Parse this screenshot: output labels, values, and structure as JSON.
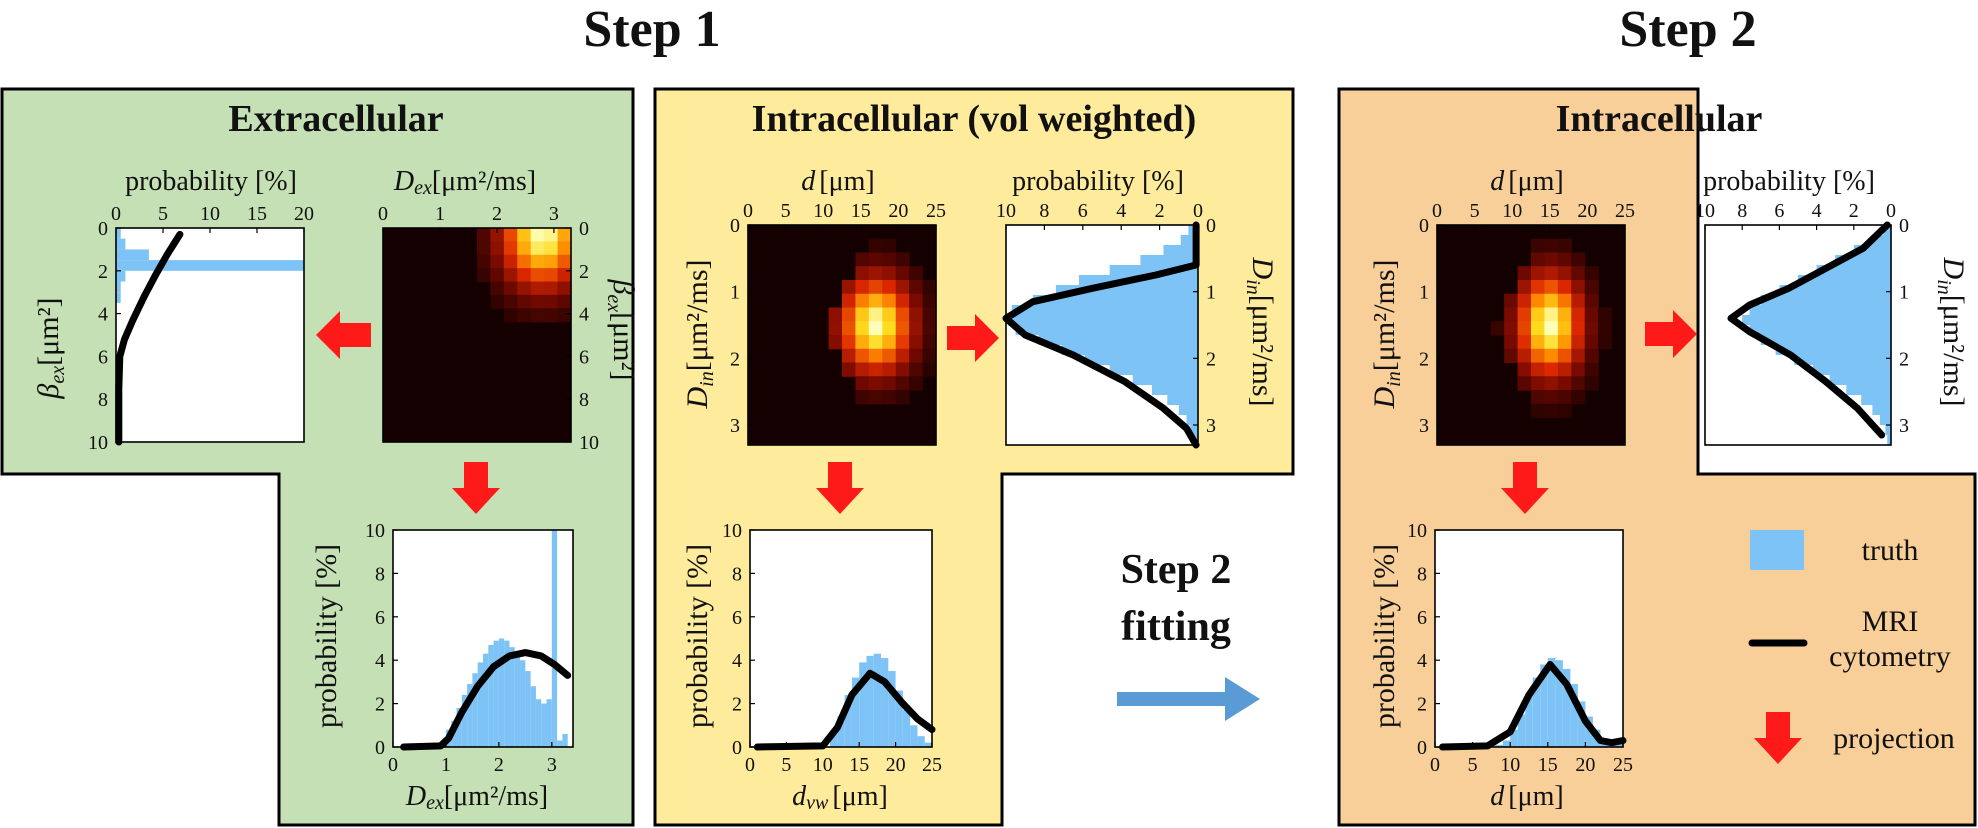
{
  "headings": {
    "step1": "Step 1",
    "step2": "Step 2",
    "fitting_line1": "Step 2",
    "fitting_line2": "fitting"
  },
  "panels": {
    "extracellular": "Extracellular",
    "intra_vol": "Intracellular (vol weighted)",
    "intra": "Intracellular"
  },
  "labels": {
    "probability_pct": "probability [%]",
    "dex_sym": "D",
    "dex_sub": "ex",
    "dex_unit": "[μm²/ms]",
    "bex_sym": "β",
    "bex_sub": "ex",
    "bex_unit": "[μm²]",
    "d_sym": "d",
    "d_unit": "[μm]",
    "din_sym": "D",
    "din_sub": "in",
    "din_unit": "[μm²/ms]",
    "dvw_sym": "d",
    "dvw_sub": "vw",
    "dvw_unit": "[μm]"
  },
  "legend": {
    "truth": "truth",
    "mri_line1": "MRI",
    "mri_line2": "cytometry",
    "projection": "projection"
  },
  "colors": {
    "truth": "#7ec3f5",
    "curve": "#000000",
    "arrow_red": "#ff1a1a",
    "arrow_blue": "#5b9bd5",
    "panel_green": "#c5e0b4",
    "panel_yellow": "#ffeb9c",
    "panel_orange": "#f8cf99"
  },
  "chart_data": [
    {
      "id": "ex-beta",
      "type": "bar",
      "orientation": "horizontal",
      "title": "",
      "xlabel": "probability [%]",
      "ylabel": "βex [μm²]",
      "xlim": [
        0,
        20
      ],
      "ylim": [
        0,
        10
      ],
      "xticks": [
        0,
        5,
        10,
        15,
        20
      ],
      "yticks": [
        0,
        2,
        4,
        6,
        8,
        10
      ],
      "truth": {
        "edges": [
          0,
          0.5,
          1,
          1.5,
          2,
          2.5,
          3,
          3.5
        ],
        "values": [
          0.5,
          1,
          3.5,
          20,
          1,
          0.5,
          0.5
        ]
      },
      "curve": [
        [
          6.8,
          0.3
        ],
        [
          5.5,
          1.2
        ],
        [
          4.2,
          2.2
        ],
        [
          3.0,
          3.2
        ],
        [
          1.8,
          4.3
        ],
        [
          0.9,
          5.2
        ],
        [
          0.4,
          6.0
        ],
        [
          0.3,
          7.5
        ],
        [
          0.3,
          10
        ]
      ]
    },
    {
      "id": "ex-heatmap",
      "type": "heatmap",
      "xlabel": "Dex [μm²/ms]",
      "ylabel": "βex [μm²]",
      "xlim": [
        0,
        3.3
      ],
      "ylim": [
        0,
        10
      ],
      "xticks": [
        0,
        1,
        2,
        3
      ],
      "yticks": [
        0,
        2,
        4,
        6,
        8,
        10
      ],
      "blob": {
        "peak_x": 2.8,
        "peak_y": 0.3,
        "spread_x": 0.75,
        "spread_y": 2.6,
        "x_cutoff": 1.0
      }
    },
    {
      "id": "ex-dex",
      "type": "bar",
      "xlabel": "Dex [μm²/ms]",
      "ylabel": "probability [%]",
      "xlim": [
        0,
        3.4
      ],
      "ylim": [
        0,
        10
      ],
      "xticks": [
        0,
        1,
        2,
        3
      ],
      "yticks": [
        0,
        2,
        4,
        6,
        8,
        10
      ],
      "truth": {
        "edges": [
          0.9,
          1.0,
          1.1,
          1.2,
          1.3,
          1.4,
          1.5,
          1.6,
          1.7,
          1.8,
          1.9,
          2.0,
          2.1,
          2.2,
          2.3,
          2.4,
          2.5,
          2.6,
          2.7,
          2.8,
          2.9,
          3.0,
          3.1,
          3.2,
          3.3
        ],
        "values": [
          0.3,
          0.8,
          1.2,
          1.8,
          2.4,
          2.9,
          3.4,
          3.9,
          4.3,
          4.7,
          4.9,
          5.0,
          4.9,
          4.6,
          4.4,
          4.0,
          3.5,
          2.8,
          2.2,
          2.0,
          2.2,
          10.0,
          0.3,
          0.6
        ]
      },
      "curve": [
        [
          0.2,
          0
        ],
        [
          0.9,
          0.05
        ],
        [
          1.05,
          0.4
        ],
        [
          1.3,
          1.6
        ],
        [
          1.6,
          2.8
        ],
        [
          1.9,
          3.7
        ],
        [
          2.2,
          4.2
        ],
        [
          2.5,
          4.35
        ],
        [
          2.8,
          4.2
        ],
        [
          3.05,
          3.8
        ],
        [
          3.3,
          3.3
        ]
      ]
    },
    {
      "id": "vw-heatmap",
      "type": "heatmap",
      "xlabel": "d [μm]",
      "ylabel": "Din [μm²/ms]",
      "xlim": [
        0,
        25
      ],
      "ylim": [
        0,
        3.3
      ],
      "xticks": [
        0,
        5,
        10,
        15,
        20,
        25
      ],
      "yticks": [
        0,
        1,
        2,
        3
      ],
      "blob": {
        "peak_x": 17,
        "peak_y": 1.5,
        "spread_x": 5,
        "spread_y": 0.75,
        "x_cutoff": 10.5,
        "wedge": true
      }
    },
    {
      "id": "vw-din",
      "type": "bar",
      "orientation": "horizontal",
      "x_reversed": true,
      "xlabel": "probability [%]",
      "ylabel": "Din [μm²/ms]",
      "xlim": [
        10,
        0
      ],
      "ylim": [
        0,
        3.3
      ],
      "xticks": [
        10,
        8,
        6,
        4,
        2,
        0
      ],
      "yticks": [
        0,
        1,
        2,
        3
      ],
      "truth": {
        "edges": [
          0,
          0.15,
          0.3,
          0.45,
          0.6,
          0.75,
          0.9,
          1.05,
          1.2,
          1.35,
          1.5,
          1.65,
          1.8,
          1.95,
          2.1,
          2.25,
          2.4,
          2.55,
          2.7,
          2.85,
          3.0,
          3.15,
          3.3
        ],
        "values": [
          0.5,
          0.9,
          1.8,
          3.0,
          4.6,
          6.2,
          7.4,
          8.6,
          9.7,
          9.9,
          9.5,
          8.3,
          7.1,
          5.9,
          4.6,
          3.4,
          2.4,
          1.6,
          1.0,
          0.6,
          0.4,
          0.2
        ]
      },
      "curve": [
        [
          0.1,
          0
        ],
        [
          0.1,
          0.6
        ],
        [
          2.2,
          0.75
        ],
        [
          5.5,
          0.95
        ],
        [
          8.6,
          1.15
        ],
        [
          10.0,
          1.4
        ],
        [
          9.0,
          1.65
        ],
        [
          6.5,
          1.95
        ],
        [
          3.8,
          2.35
        ],
        [
          1.8,
          2.75
        ],
        [
          0.6,
          3.05
        ],
        [
          0.1,
          3.3
        ]
      ]
    },
    {
      "id": "vw-dvw",
      "type": "bar",
      "xlabel": "dvw [μm]",
      "ylabel": "probability [%]",
      "xlim": [
        0,
        25
      ],
      "ylim": [
        0,
        10
      ],
      "xticks": [
        0,
        5,
        10,
        15,
        20,
        25
      ],
      "yticks": [
        0,
        2,
        4,
        6,
        8,
        10
      ],
      "truth": {
        "edges": [
          11,
          12,
          13,
          14,
          15,
          16,
          17,
          18,
          19,
          20,
          21,
          22,
          23,
          24,
          25
        ],
        "values": [
          0.6,
          1.4,
          2.4,
          3.2,
          3.9,
          4.2,
          4.3,
          4.1,
          3.5,
          2.6,
          1.7,
          1.0,
          0.5,
          0.2
        ]
      },
      "curve": [
        [
          1,
          0
        ],
        [
          10,
          0.05
        ],
        [
          12,
          0.9
        ],
        [
          14,
          2.4
        ],
        [
          16.5,
          3.4
        ],
        [
          18.5,
          3.0
        ],
        [
          21,
          2.0
        ],
        [
          23,
          1.3
        ],
        [
          25,
          0.8
        ]
      ]
    },
    {
      "id": "in-heatmap",
      "type": "heatmap",
      "xlabel": "d [μm]",
      "ylabel": "Din [μm²/ms]",
      "xlim": [
        0,
        25
      ],
      "ylim": [
        0,
        3.3
      ],
      "xticks": [
        0,
        5,
        10,
        15,
        20,
        25
      ],
      "yticks": [
        0,
        1,
        2,
        3
      ],
      "blob": {
        "peak_x": 15,
        "peak_y": 1.5,
        "spread_x": 4.5,
        "spread_y": 0.8,
        "x_cutoff": 7.5,
        "wedge": true
      }
    },
    {
      "id": "in-din",
      "type": "bar",
      "orientation": "horizontal",
      "x_reversed": true,
      "xlabel": "probability [%]",
      "ylabel": "Din [μm²/ms]",
      "xlim": [
        10,
        0
      ],
      "ylim": [
        0,
        3.3
      ],
      "xticks": [
        10,
        8,
        6,
        4,
        2,
        0
      ],
      "yticks": [
        0,
        1,
        2,
        3
      ],
      "truth": {
        "edges": [
          0,
          0.15,
          0.3,
          0.45,
          0.6,
          0.75,
          0.9,
          1.05,
          1.2,
          1.35,
          1.5,
          1.65,
          1.8,
          1.95,
          2.1,
          2.25,
          2.4,
          2.55,
          2.7,
          2.85,
          3.0,
          3.15,
          3.3
        ],
        "values": [
          0.4,
          1.0,
          2.0,
          3.0,
          4.0,
          5.0,
          6.0,
          7.0,
          7.6,
          8.0,
          7.6,
          7.0,
          6.2,
          5.2,
          4.2,
          3.3,
          2.4,
          1.6,
          1.0,
          0.6,
          0.3,
          0.2
        ]
      },
      "curve": [
        [
          0.2,
          0
        ],
        [
          1.5,
          0.35
        ],
        [
          3.5,
          0.65
        ],
        [
          5.5,
          0.95
        ],
        [
          7.6,
          1.2
        ],
        [
          8.6,
          1.4
        ],
        [
          7.6,
          1.6
        ],
        [
          5.4,
          1.95
        ],
        [
          3.5,
          2.35
        ],
        [
          1.8,
          2.75
        ],
        [
          0.5,
          3.15
        ]
      ]
    },
    {
      "id": "in-d",
      "type": "bar",
      "xlabel": "d [μm]",
      "ylabel": "probability [%]",
      "xlim": [
        0,
        25
      ],
      "ylim": [
        0,
        10
      ],
      "xticks": [
        0,
        5,
        10,
        15,
        20,
        25
      ],
      "yticks": [
        0,
        2,
        4,
        6,
        8,
        10
      ],
      "truth": {
        "edges": [
          8,
          9,
          10,
          11,
          12,
          13,
          14,
          15,
          16,
          17,
          18,
          19,
          20,
          21,
          22,
          23,
          24,
          25
        ],
        "values": [
          0.1,
          0.3,
          0.8,
          1.5,
          2.4,
          3.2,
          3.8,
          4.1,
          4.0,
          3.6,
          2.9,
          2.1,
          1.4,
          0.8,
          0.4,
          0.2,
          0.3
        ]
      },
      "curve": [
        [
          1,
          0
        ],
        [
          7,
          0.05
        ],
        [
          10,
          0.7
        ],
        [
          12.5,
          2.4
        ],
        [
          15.3,
          3.8
        ],
        [
          17.5,
          2.9
        ],
        [
          20,
          1.2
        ],
        [
          22,
          0.3
        ],
        [
          23.5,
          0.2
        ],
        [
          25,
          0.3
        ]
      ]
    }
  ]
}
